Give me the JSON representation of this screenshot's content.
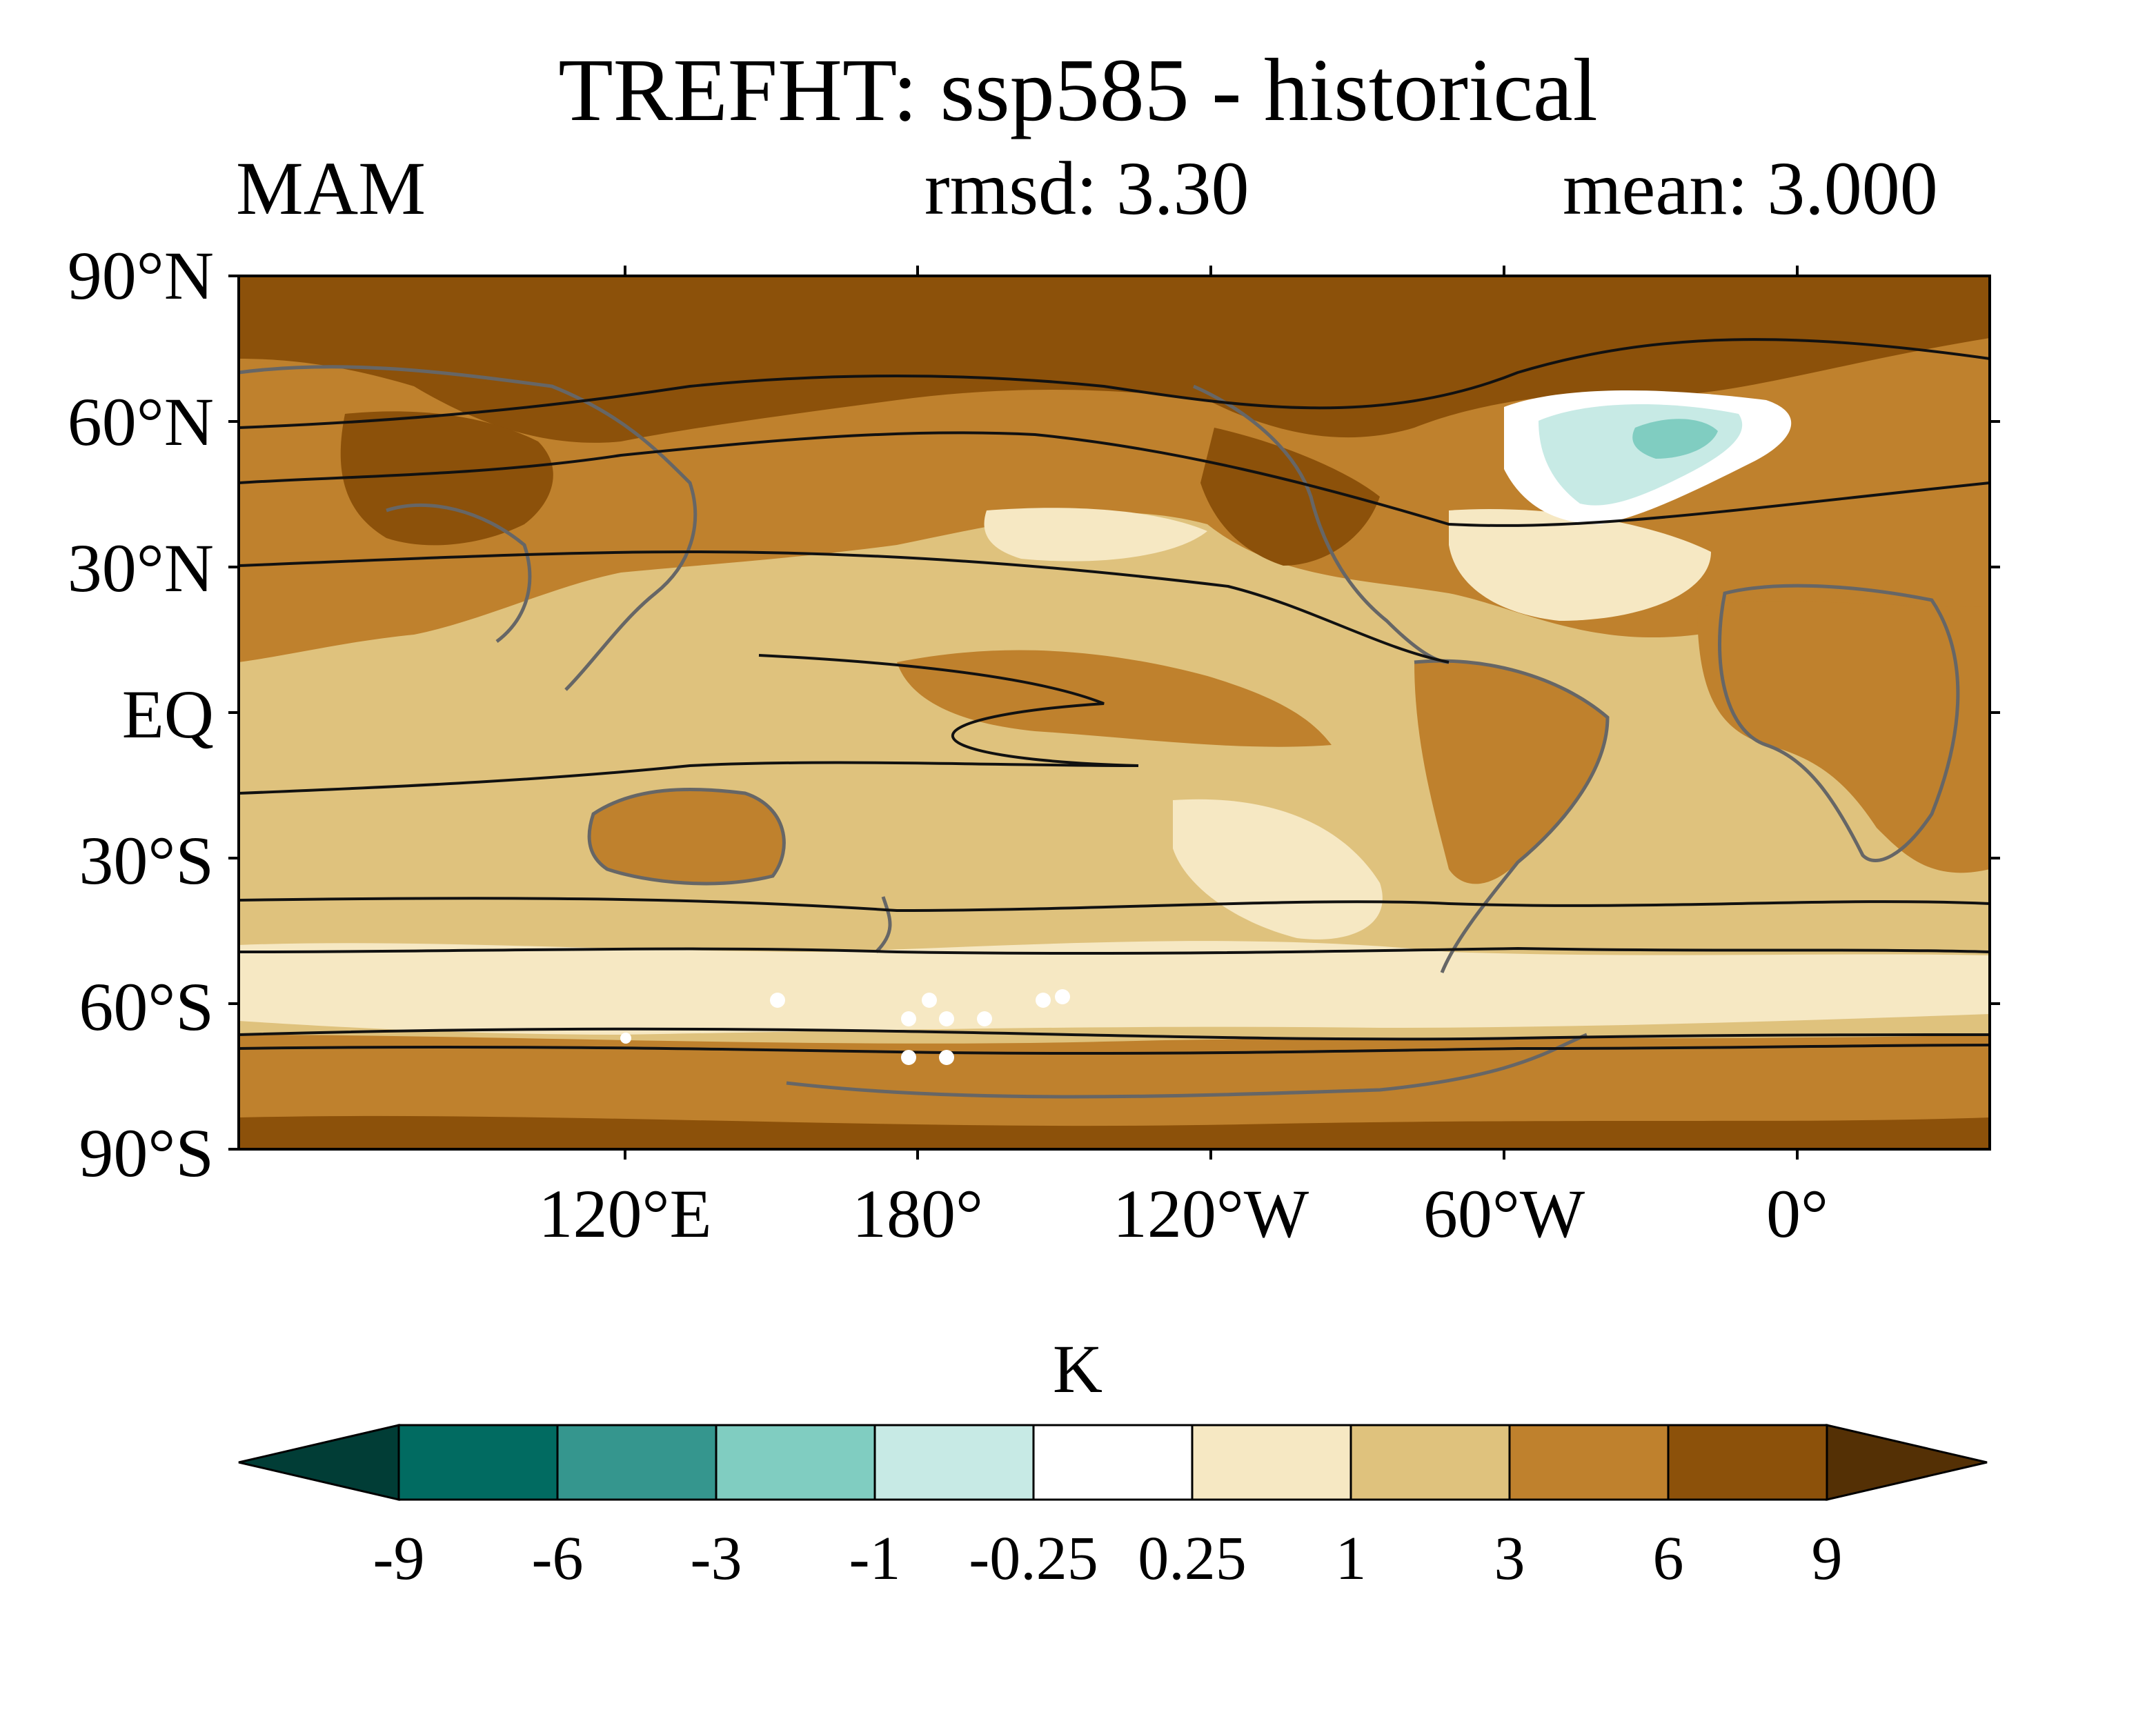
{
  "title": "TREFHT: ssp585 - historical",
  "season": "MAM",
  "rmsd_text": "rmsd: 3.30",
  "mean_text": "mean: 3.000",
  "units": "K",
  "lat_labels": [
    "90°N",
    "60°N",
    "30°N",
    "EQ",
    "30°S",
    "60°S",
    "90°S"
  ],
  "lon_labels": [
    "120°E",
    "180°",
    "120°W",
    "60°W",
    "0°"
  ],
  "colorbar": {
    "levels": [
      "-9",
      "-6",
      "-3",
      "-1",
      "-0.25",
      "0.25",
      "1",
      "3",
      "6",
      "9"
    ],
    "colors": [
      "#013d36",
      "#016b61",
      "#35968e",
      "#80cdc1",
      "#c7eae5",
      "#ffffff",
      "#f6e8c3",
      "#dfc27d",
      "#bf812d",
      "#8c510a",
      "#543005"
    ]
  },
  "map_colors": {
    "strong_warming": "#8c510a",
    "warming": "#bf812d",
    "moderate": "#dfc27d",
    "weak": "#f6e8c3",
    "neutral": "#ffffff",
    "cooling_weak": "#c7eae5",
    "cooling": "#80cdc1",
    "coastline": "#666666",
    "contour": "#111111"
  }
}
